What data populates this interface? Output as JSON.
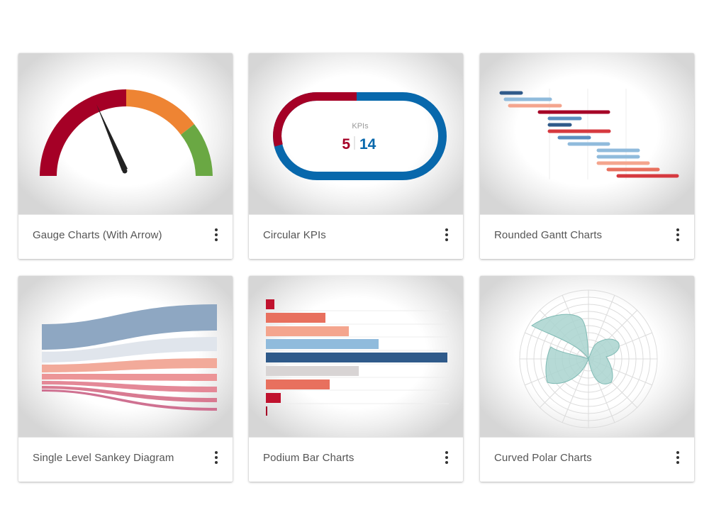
{
  "cards": [
    {
      "title": "Gauge Charts (With Arrow)",
      "menu_icon": "more-vertical-icon"
    },
    {
      "title": "Circular KPIs",
      "menu_icon": "more-vertical-icon"
    },
    {
      "title": "Rounded Gantt Charts",
      "menu_icon": "more-vertical-icon"
    },
    {
      "title": "Single Level Sankey Diagram",
      "menu_icon": "more-vertical-icon"
    },
    {
      "title": "Podium Bar Charts",
      "menu_icon": "more-vertical-icon"
    },
    {
      "title": "Curved Polar Charts",
      "menu_icon": "more-vertical-icon"
    }
  ],
  "kpi": {
    "label": "KPIs",
    "left_value": "5",
    "right_value": "14"
  },
  "colors": {
    "crimson": "#a50026",
    "orange": "#ee8433",
    "green": "#6aa843",
    "blue": "#0868ac",
    "navy": "#2f5a8a",
    "light_blue": "#90bbdc",
    "salmon": "#f4a58e",
    "coral": "#e8705e",
    "red": "#d6393f",
    "teal_fill": "#a9d3cf"
  }
}
